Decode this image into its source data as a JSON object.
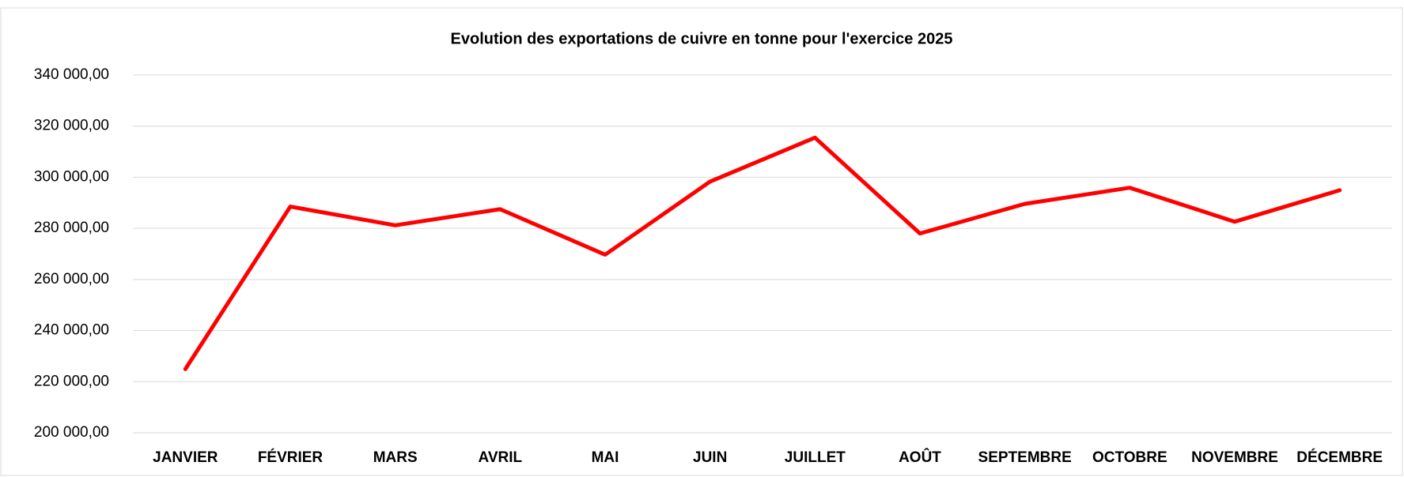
{
  "chart_data": {
    "type": "line",
    "title": "Evolution des exportations de cuivre en tonne pour l'exercice 2025",
    "categories": [
      "JANVIER",
      "FÉVRIER",
      "MARS",
      "AVRIL",
      "MAI",
      "JUIN",
      "JUILLET",
      "AOÛT",
      "SEPTEMBRE",
      "OCTOBRE",
      "NOVEMBRE",
      "DÉCEMBRE"
    ],
    "values": [
      224900,
      288500,
      281200,
      287500,
      269700,
      298300,
      315500,
      278000,
      289600,
      295900,
      282600,
      294900
    ],
    "color": "#ff0000",
    "ylim": [
      200000,
      340000
    ],
    "yticks": [
      {
        "value": 200000,
        "label": "200 000,00"
      },
      {
        "value": 220000,
        "label": "220 000,00"
      },
      {
        "value": 240000,
        "label": "240 000,00"
      },
      {
        "value": 260000,
        "label": "260 000,00"
      },
      {
        "value": 280000,
        "label": "280 000,00"
      },
      {
        "value": 300000,
        "label": "300 000,00"
      },
      {
        "value": 320000,
        "label": "320 000,00"
      },
      {
        "value": 340000,
        "label": "340 000,00"
      }
    ],
    "grid": true
  }
}
